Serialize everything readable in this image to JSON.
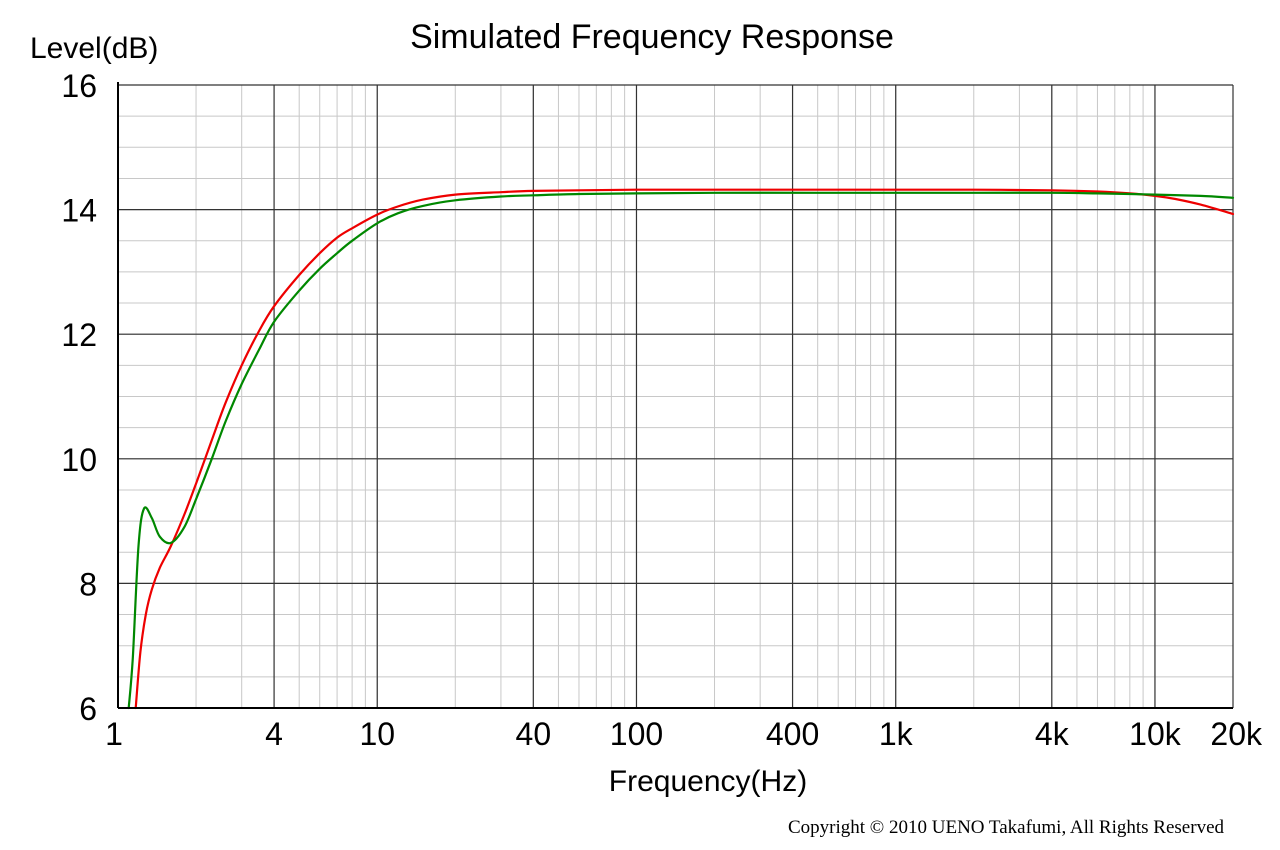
{
  "chart_data": {
    "type": "line",
    "title": "Simulated Frequency Response",
    "xlabel": "Frequency(Hz)",
    "ylabel": "Level(dB)",
    "x_scale": "log",
    "xlim": [
      1,
      20000
    ],
    "ylim": [
      6,
      16
    ],
    "grid": true,
    "x_tick_labels": [
      {
        "label": "1",
        "value": 1
      },
      {
        "label": "4",
        "value": 4
      },
      {
        "label": "10",
        "value": 10
      },
      {
        "label": "40",
        "value": 40
      },
      {
        "label": "100",
        "value": 100
      },
      {
        "label": "400",
        "value": 400
      },
      {
        "label": "1k",
        "value": 1000
      },
      {
        "label": "4k",
        "value": 4000
      },
      {
        "label": "10k",
        "value": 10000
      },
      {
        "label": "20k",
        "value": 20000
      }
    ],
    "y_tick_labels": [
      {
        "label": "6",
        "value": 6
      },
      {
        "label": "8",
        "value": 8
      },
      {
        "label": "10",
        "value": 10
      },
      {
        "label": "12",
        "value": 12
      },
      {
        "label": "14",
        "value": 14
      },
      {
        "label": "16",
        "value": 16
      }
    ],
    "series": [
      {
        "color": "#ee0000",
        "x": [
          1.17,
          1.22,
          1.28,
          1.35,
          1.45,
          1.6,
          1.8,
          2.0,
          2.3,
          2.6,
          3.0,
          3.5,
          4.0,
          5.0,
          6.0,
          7.0,
          8.0,
          10,
          12,
          15,
          20,
          30,
          40,
          60,
          100,
          200,
          500,
          1000,
          2000,
          4000,
          6000,
          8000,
          10000,
          12000,
          15000,
          20000
        ],
        "y": [
          6.0,
          6.9,
          7.5,
          7.9,
          8.25,
          8.6,
          9.1,
          9.6,
          10.3,
          10.9,
          11.5,
          12.05,
          12.45,
          12.95,
          13.3,
          13.55,
          13.7,
          13.92,
          14.05,
          14.16,
          14.24,
          14.28,
          14.3,
          14.31,
          14.32,
          14.32,
          14.32,
          14.32,
          14.32,
          14.31,
          14.29,
          14.26,
          14.22,
          14.17,
          14.08,
          13.93
        ]
      },
      {
        "color": "#008800",
        "x": [
          1.1,
          1.14,
          1.2,
          1.26,
          1.35,
          1.45,
          1.6,
          1.8,
          2.0,
          2.3,
          2.6,
          3.0,
          3.5,
          4.0,
          5.0,
          6.0,
          7.0,
          8.0,
          10,
          12,
          15,
          20,
          30,
          40,
          60,
          100,
          200,
          500,
          1000,
          2000,
          4000,
          6000,
          8000,
          10000,
          15000,
          20000
        ],
        "y": [
          6.0,
          6.8,
          8.6,
          9.2,
          9.05,
          8.75,
          8.65,
          8.9,
          9.35,
          10.0,
          10.6,
          11.2,
          11.75,
          12.2,
          12.7,
          13.05,
          13.3,
          13.5,
          13.78,
          13.94,
          14.06,
          14.15,
          14.21,
          14.23,
          14.25,
          14.26,
          14.27,
          14.27,
          14.27,
          14.27,
          14.27,
          14.26,
          14.25,
          14.24,
          14.22,
          14.19
        ]
      }
    ],
    "copyright": "Copyright © 2010 UENO Takafumi, All Rights Reserved"
  }
}
